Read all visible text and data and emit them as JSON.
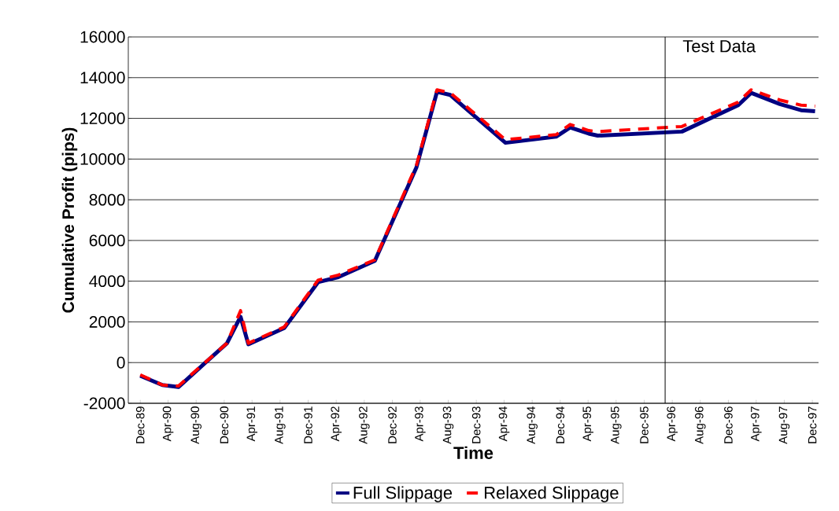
{
  "chart_data": {
    "type": "line",
    "xlabel": "Time",
    "ylabel": "Cumulative Profit (pips)",
    "x": [
      "1989-12-01",
      "1990-03-07",
      "1990-05-16",
      "1990-12-13",
      "1991-02-10",
      "1991-03-16",
      "1991-08-19",
      "1992-01-13",
      "1992-04-10",
      "1992-09-16",
      "1993-03-16",
      "1993-06-13",
      "1993-08-10",
      "1994-04-07",
      "1994-11-13",
      "1995-01-13",
      "1995-04-04",
      "1995-05-13",
      "1996-05-13",
      "1997-01-13",
      "1997-03-10",
      "1997-07-13",
      "1997-10-13",
      "1997-12-13"
    ],
    "series": [
      {
        "name": "Full Slippage",
        "color": "#000080",
        "line_style": "solid",
        "values": [
          -650,
          -1100,
          -1200,
          950,
          2250,
          900,
          1700,
          3950,
          4200,
          5000,
          9600,
          13300,
          13150,
          10800,
          11100,
          11550,
          11250,
          11150,
          11350,
          12650,
          13250,
          12700,
          12400,
          12350
        ]
      },
      {
        "name": "Relaxed Slippage",
        "color": "#ff0000",
        "line_style": "dashed",
        "values": [
          -600,
          -1100,
          -1150,
          950,
          2550,
          950,
          1750,
          4050,
          4300,
          5050,
          9700,
          13400,
          13250,
          10950,
          11200,
          11700,
          11400,
          11350,
          11600,
          12800,
          13400,
          12900,
          12650,
          12600
        ]
      }
    ],
    "xlim": [
      "1989-10-10",
      "1997-12-28"
    ],
    "xticks": [
      {
        "value": "1989-12-01",
        "label": "Dec-89"
      },
      {
        "value": "1990-04-01",
        "label": "Apr-90"
      },
      {
        "value": "1990-08-01",
        "label": "Aug-90"
      },
      {
        "value": "1990-12-01",
        "label": "Dec-90"
      },
      {
        "value": "1991-04-01",
        "label": "Apr-91"
      },
      {
        "value": "1991-08-01",
        "label": "Aug-91"
      },
      {
        "value": "1991-12-01",
        "label": "Dec-91"
      },
      {
        "value": "1992-04-01",
        "label": "Apr-92"
      },
      {
        "value": "1992-08-01",
        "label": "Aug-92"
      },
      {
        "value": "1992-12-01",
        "label": "Dec-92"
      },
      {
        "value": "1993-04-01",
        "label": "Apr-93"
      },
      {
        "value": "1993-08-01",
        "label": "Aug-93"
      },
      {
        "value": "1993-12-01",
        "label": "Dec-93"
      },
      {
        "value": "1994-04-01",
        "label": "Apr-94"
      },
      {
        "value": "1994-08-01",
        "label": "Aug-94"
      },
      {
        "value": "1994-12-01",
        "label": "Dec-94"
      },
      {
        "value": "1995-04-01",
        "label": "Apr-95"
      },
      {
        "value": "1995-08-01",
        "label": "Aug-95"
      },
      {
        "value": "1995-12-01",
        "label": "Dec-95"
      },
      {
        "value": "1996-04-01",
        "label": "Apr-96"
      },
      {
        "value": "1996-08-01",
        "label": "Aug-96"
      },
      {
        "value": "1996-12-01",
        "label": "Dec-96"
      },
      {
        "value": "1997-04-01",
        "label": "Apr-97"
      },
      {
        "value": "1997-08-01",
        "label": "Aug-97"
      },
      {
        "value": "1997-12-01",
        "label": "Dec-97"
      }
    ],
    "ylim": [
      -2000,
      16000
    ],
    "yticks": [
      -2000,
      0,
      2000,
      4000,
      6000,
      8000,
      10000,
      12000,
      14000,
      16000
    ],
    "grid": "y",
    "legend": "bottom",
    "ref_lines": [
      {
        "axis": "x",
        "value": "1996-03-01",
        "label": "Test Data",
        "color": "#000000"
      }
    ]
  }
}
